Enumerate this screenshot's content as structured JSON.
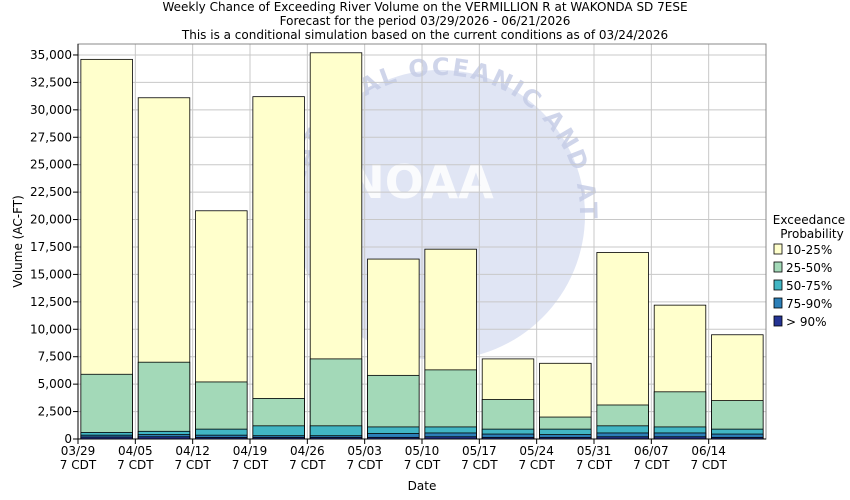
{
  "header": {
    "title": "Weekly Chance of Exceeding River Volume on the VERMILLION R at WAKONDA SD 7ESE",
    "subtitle1": "Forecast for the period 03/29/2026 - 06/21/2026",
    "subtitle2": "This is a conditional simulation based on the current conditions as of 03/24/2026"
  },
  "watermark": {
    "text": "NATIONAL OCEANIC AND ATMOSPHERIC ADMINISTRATION",
    "logo": "NOAA"
  },
  "colors": {
    "p10_25": "#ffffcc",
    "p25_50": "#a3d9b8",
    "p50_75": "#41b6c4",
    "p75_90": "#2c7fb8",
    "p90": "#253494",
    "plot_bg": "#ffffff",
    "grid": "#c8c8c8"
  },
  "chart_data": {
    "type": "bar",
    "title": "Weekly Chance of Exceeding River Volume on the VERMILLION R at WAKONDA SD 7ESE",
    "xlabel": "Date",
    "ylabel": "Volume (AC-FT)",
    "ylim": [
      0,
      36000
    ],
    "yticks": [
      0,
      2500,
      5000,
      7500,
      10000,
      12500,
      15000,
      17500,
      20000,
      22500,
      25000,
      27500,
      30000,
      32500,
      35000
    ],
    "ytick_labels": [
      "0",
      "2,500",
      "5,000",
      "7,500",
      "10,000",
      "12,500",
      "15,000",
      "17,500",
      "20,000",
      "22,500",
      "25,000",
      "27,500",
      "30,000",
      "32,500",
      "35,000"
    ],
    "grid": true,
    "legend_position": "right",
    "legend_title": [
      "Exceedance",
      "Probability"
    ],
    "categories": [
      "03/29",
      "04/05",
      "04/12",
      "04/19",
      "04/26",
      "05/03",
      "05/10",
      "05/17",
      "05/24",
      "05/31",
      "06/07",
      "06/14"
    ],
    "category_sublabel": "7 CDT",
    "series": [
      {
        "name": "10-25%",
        "color": "#ffffcc",
        "values": [
          34600,
          31100,
          20800,
          31200,
          35200,
          16400,
          17300,
          7300,
          6900,
          17000,
          12200,
          9500
        ]
      },
      {
        "name": "25-50%",
        "color": "#a3d9b8",
        "values": [
          5900,
          7000,
          5200,
          3700,
          7300,
          5800,
          6300,
          3600,
          2000,
          3100,
          4300,
          3500
        ]
      },
      {
        "name": "50-75%",
        "color": "#41b6c4",
        "values": [
          600,
          700,
          900,
          1200,
          1200,
          1100,
          1100,
          900,
          900,
          1200,
          1100,
          900
        ]
      },
      {
        "name": "75-90%",
        "color": "#2c7fb8",
        "values": [
          350,
          400,
          350,
          300,
          300,
          500,
          550,
          450,
          400,
          550,
          550,
          450
        ]
      },
      {
        "name": "> 90%",
        "color": "#253494",
        "values": [
          180,
          200,
          150,
          150,
          150,
          150,
          200,
          150,
          150,
          200,
          200,
          150
        ]
      }
    ]
  }
}
